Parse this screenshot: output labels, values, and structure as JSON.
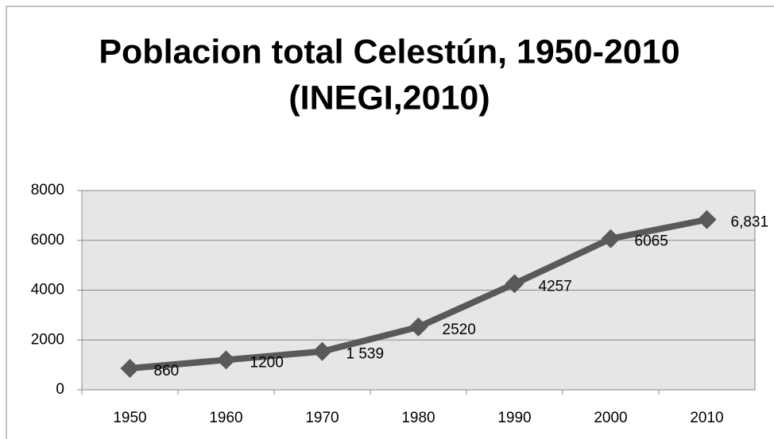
{
  "chart_data": {
    "type": "line",
    "title": "Poblacion total Celestún, 1950-2010",
    "subtitle": "(INEGI,2010)",
    "categories": [
      "1950",
      "1960",
      "1970",
      "1980",
      "1990",
      "2000",
      "2010"
    ],
    "values": [
      860,
      1200,
      1539,
      2520,
      4257,
      6065,
      6831
    ],
    "value_labels": [
      "860",
      "1200",
      "1 539",
      "2520",
      "4257",
      "6065",
      "6,831"
    ],
    "color": "#595959",
    "ylim": [
      0,
      8000
    ],
    "yticks": [
      0,
      2000,
      4000,
      6000,
      8000
    ],
    "grid": true
  }
}
